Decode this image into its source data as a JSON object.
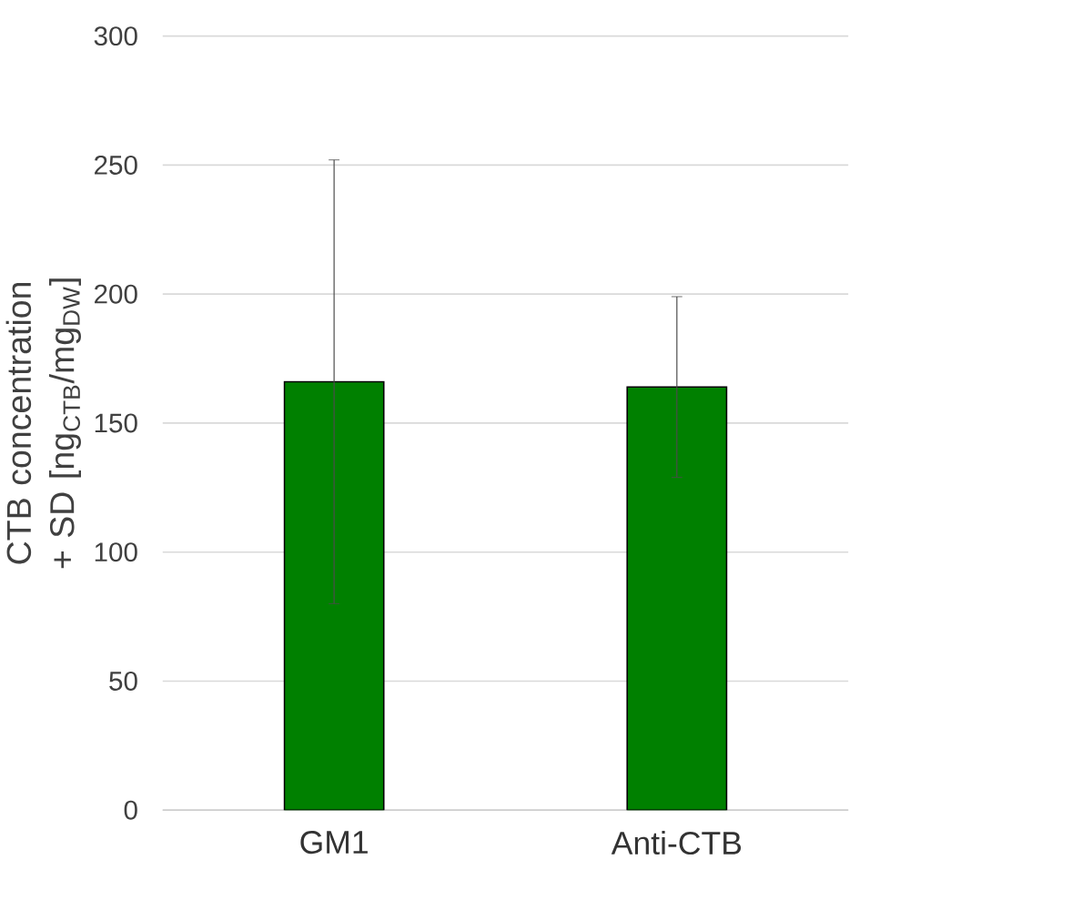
{
  "chart_data": {
    "type": "bar",
    "ylabel": "CTB concentration + SD [ng$_{CTB}$/mg$_{DW}$]",
    "categories": [
      "GM1",
      "Anti-CTB"
    ],
    "values": [
      166,
      164
    ],
    "errors": [
      86,
      35
    ],
    "color": "#008000",
    "ylim": [
      0,
      300
    ],
    "yticks": [
      0,
      50,
      100,
      150,
      200,
      250,
      300
    ],
    "grid": "y"
  }
}
